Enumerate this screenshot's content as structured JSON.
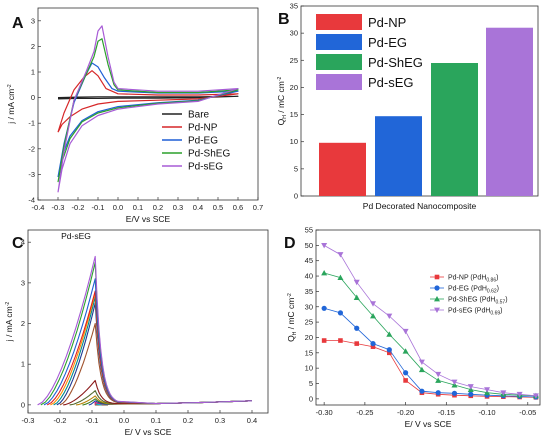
{
  "panel_labels": {
    "a": "A",
    "b": "B",
    "c": "C",
    "d": "D"
  },
  "chart_data": [
    {
      "panel": "A",
      "type": "line",
      "xlabel": "E/V vs SCE",
      "ylabel_main": "j / mA cm",
      "ylabel_sup": "-2",
      "xlim": [
        -0.4,
        0.7
      ],
      "ylim": [
        -4,
        3.5
      ],
      "xticks": [
        "-0.4",
        "-0.3",
        "-0.2",
        "-0.1",
        "0.0",
        "0.1",
        "0.2",
        "0.3",
        "0.4",
        "0.5",
        "0.6",
        "0.7"
      ],
      "yticks": [
        "-4",
        "-3",
        "-2",
        "-1",
        "0",
        "1",
        "2",
        "3"
      ],
      "legend_position": "bottom-right",
      "series": [
        {
          "name": "Bare",
          "color": "#222222",
          "x": [
            -0.3,
            -0.2,
            -0.1,
            0.0,
            0.2,
            0.4,
            0.6,
            0.4,
            0.2,
            0.0,
            -0.1,
            -0.2,
            -0.3
          ],
          "y": [
            0.0,
            0.02,
            0.03,
            0.03,
            0.03,
            0.03,
            0.05,
            0.0,
            -0.02,
            -0.02,
            -0.03,
            -0.03,
            -0.05
          ]
        },
        {
          "name": "Pd-NP",
          "color": "#d62728",
          "x": [
            -0.3,
            -0.27,
            -0.22,
            -0.17,
            -0.13,
            -0.1,
            -0.06,
            0.0,
            0.2,
            0.4,
            0.6,
            0.4,
            0.2,
            0.0,
            -0.1,
            -0.18,
            -0.24,
            -0.28,
            -0.3
          ],
          "y": [
            -1.35,
            -0.6,
            0.3,
            0.8,
            1.05,
            0.85,
            0.35,
            0.15,
            0.1,
            0.1,
            0.15,
            -0.05,
            -0.1,
            -0.15,
            -0.25,
            -0.45,
            -0.75,
            -1.05,
            -1.35
          ]
        },
        {
          "name": "Pd-EG",
          "color": "#1f5fd6",
          "x": [
            -0.3,
            -0.27,
            -0.22,
            -0.16,
            -0.13,
            -0.1,
            -0.07,
            -0.03,
            0.0,
            0.2,
            0.4,
            0.6,
            0.4,
            0.2,
            0.0,
            -0.1,
            -0.18,
            -0.24,
            -0.28,
            -0.3
          ],
          "y": [
            -3.1,
            -1.8,
            -0.2,
            0.9,
            1.35,
            1.2,
            0.8,
            0.35,
            0.25,
            0.18,
            0.18,
            0.25,
            -0.1,
            -0.2,
            -0.35,
            -0.55,
            -0.9,
            -1.5,
            -2.3,
            -3.1
          ]
        },
        {
          "name": "Pd-ShEG",
          "color": "#2ca02c",
          "x": [
            -0.3,
            -0.27,
            -0.22,
            -0.16,
            -0.12,
            -0.1,
            -0.08,
            -0.05,
            -0.02,
            0.0,
            0.2,
            0.4,
            0.6,
            0.4,
            0.2,
            0.0,
            -0.1,
            -0.18,
            -0.24,
            -0.28,
            -0.3
          ],
          "y": [
            -3.3,
            -1.9,
            -0.1,
            0.9,
            1.6,
            2.2,
            2.3,
            1.3,
            0.5,
            0.3,
            0.2,
            0.2,
            0.3,
            -0.12,
            -0.22,
            -0.4,
            -0.6,
            -0.95,
            -1.6,
            -2.5,
            -3.3
          ]
        },
        {
          "name": "Pd-sEG",
          "color": "#a75bd6",
          "x": [
            -0.3,
            -0.27,
            -0.22,
            -0.16,
            -0.12,
            -0.1,
            -0.08,
            -0.05,
            -0.02,
            0.0,
            0.2,
            0.4,
            0.6,
            0.4,
            0.2,
            0.0,
            -0.1,
            -0.18,
            -0.24,
            -0.28,
            -0.3
          ],
          "y": [
            -3.7,
            -2.1,
            -0.1,
            1.0,
            1.8,
            2.6,
            2.8,
            1.6,
            0.6,
            0.35,
            0.25,
            0.25,
            0.35,
            -0.15,
            -0.25,
            -0.45,
            -0.7,
            -1.1,
            -1.8,
            -2.8,
            -3.7
          ]
        }
      ]
    },
    {
      "panel": "B",
      "type": "bar",
      "xlabel": "Pd Decorated Nanocomposite",
      "ylabel_main": "Q",
      "ylabel_sub": "H",
      "ylabel_rest": " / mC cm",
      "ylabel_sup": "-2",
      "ylim": [
        0,
        35
      ],
      "yticks": [
        "0",
        "5",
        "10",
        "15",
        "20",
        "25",
        "30",
        "35"
      ],
      "legend_position": "top-left",
      "series": [
        {
          "name": "Pd-NP",
          "value": 9.8,
          "color": "#e8393c"
        },
        {
          "name": "Pd-EG",
          "value": 14.7,
          "color": "#2166d8"
        },
        {
          "name": "Pd-ShEG",
          "value": 24.5,
          "color": "#2aa55c"
        },
        {
          "name": "Pd-sEG",
          "value": 31.0,
          "color": "#a974d8"
        }
      ]
    },
    {
      "panel": "C",
      "type": "line",
      "title": "Pd-sEG",
      "xlabel": "E/ V vs SCE",
      "ylabel_main": "j / mA cm",
      "ylabel_sup": "-2",
      "xlim": [
        -0.3,
        0.45
      ],
      "ylim": [
        -0.2,
        4.3
      ],
      "xticks": [
        "-0.3",
        "-0.2",
        "-0.1",
        "0.0",
        "0.1",
        "0.2",
        "0.3",
        "0.4"
      ],
      "yticks": [
        "0",
        "1",
        "2",
        "3",
        "4"
      ],
      "series": [
        {
          "start": -0.05,
          "peak": 0.0,
          "color": "#7a5230"
        },
        {
          "start": -0.07,
          "peak": 0.03,
          "color": "#00bcd4"
        },
        {
          "start": -0.09,
          "peak": 0.06,
          "color": "#e91e63"
        },
        {
          "start": -0.11,
          "peak": 0.1,
          "color": "#1e3fa8"
        },
        {
          "start": -0.13,
          "peak": 0.15,
          "color": "#3f7f1f"
        },
        {
          "start": -0.15,
          "peak": 0.22,
          "color": "#b8860b"
        },
        {
          "start": -0.17,
          "peak": 0.35,
          "color": "#556b2f"
        },
        {
          "start": -0.19,
          "peak": 0.6,
          "color": "#8b1a1a"
        },
        {
          "start": -0.2,
          "peak": 2.0,
          "color": "#a0522d"
        },
        {
          "start": -0.21,
          "peak": 2.5,
          "color": "#1f3a93"
        },
        {
          "start": -0.22,
          "peak": 2.65,
          "color": "#008b8b"
        },
        {
          "start": -0.23,
          "peak": 2.75,
          "color": "#ff8c00"
        },
        {
          "start": -0.24,
          "peak": 2.8,
          "color": "#e02020"
        },
        {
          "start": -0.25,
          "peak": 3.1,
          "color": "#1f5fd6"
        },
        {
          "start": -0.26,
          "peak": 3.5,
          "color": "#2ca02c"
        },
        {
          "start": -0.27,
          "peak": 3.65,
          "color": "#a75bd6"
        }
      ]
    },
    {
      "panel": "D",
      "type": "line",
      "xlabel": "E/ V vs SCE",
      "ylabel_main": "Q",
      "ylabel_sub": "H",
      "ylabel_rest": " / mC cm",
      "ylabel_sup": "-2",
      "xlim": [
        -0.31,
        -0.035
      ],
      "ylim": [
        -2,
        55
      ],
      "xticks": [
        "-0.30",
        "-0.25",
        "-0.20",
        "-0.15",
        "-0.10",
        "-0.05"
      ],
      "yticks": [
        "0",
        "5",
        "10",
        "15",
        "20",
        "25",
        "30",
        "35",
        "40",
        "45",
        "50",
        "55"
      ],
      "legend_position": "middle-right",
      "x": [
        -0.3,
        -0.28,
        -0.26,
        -0.24,
        -0.22,
        -0.2,
        -0.18,
        -0.16,
        -0.14,
        -0.12,
        -0.1,
        -0.08,
        -0.06,
        -0.04
      ],
      "series": [
        {
          "name": "Pd-NP (PdH",
          "sub": "0.86",
          "tail": ")",
          "color": "#e8393c",
          "marker": "square",
          "y": [
            19.0,
            19.0,
            18.0,
            17.0,
            15.0,
            6.0,
            2.0,
            1.5,
            1.2,
            1.0,
            0.8,
            0.7,
            0.6,
            0.5
          ]
        },
        {
          "name": "Pd-EG (PdH",
          "sub": "0.62",
          "tail": ")",
          "color": "#2166d8",
          "marker": "circle",
          "y": [
            29.5,
            28.0,
            23.0,
            18.0,
            16.0,
            8.5,
            2.5,
            2.0,
            1.8,
            1.5,
            1.2,
            1.0,
            0.8,
            0.6
          ]
        },
        {
          "name": "Pd-ShEG (PdH",
          "sub": "0.57",
          "tail": ")",
          "color": "#2aa55c",
          "marker": "triangle-up",
          "y": [
            41.0,
            39.5,
            33.0,
            27.0,
            21.0,
            15.5,
            9.5,
            6.0,
            4.5,
            3.0,
            2.0,
            1.5,
            1.2,
            1.0
          ]
        },
        {
          "name": "Pd-sEG (PdH",
          "sub": "0.69",
          "tail": ")",
          "color": "#a974d8",
          "marker": "triangle-down",
          "y": [
            50.0,
            47.0,
            38.0,
            31.0,
            27.0,
            22.0,
            12.0,
            8.0,
            5.5,
            4.0,
            3.0,
            2.0,
            1.5,
            1.0
          ]
        }
      ]
    }
  ]
}
